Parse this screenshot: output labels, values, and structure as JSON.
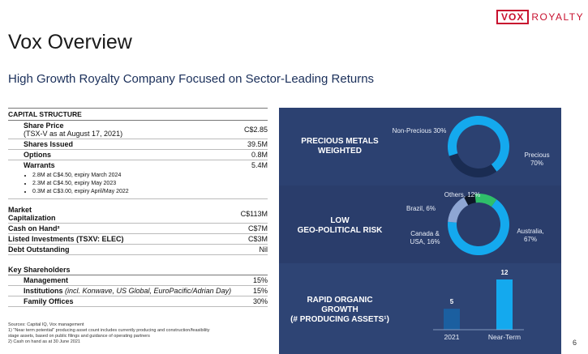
{
  "logo": {
    "box": "VOX",
    "text": "ROYALTY"
  },
  "title": "Vox Overview",
  "subtitle": "High Growth Royalty Company Focused on Sector-Leading Returns",
  "capital": {
    "header": "CAPITAL STRUCTURE",
    "share_price_label": "Share Price",
    "share_price_note": "(TSX-V as at August 17, 2021)",
    "share_price": "C$2.85",
    "shares_issued_label": "Shares Issued",
    "shares_issued": "39.5M",
    "options_label": "Options",
    "options": "0.8M",
    "warrants_label": "Warrants",
    "warrants": "5.4M",
    "warrant_bullets": [
      "2.8M at C$4.50, expiry March 2024",
      "2.3M at C$4.50, expiry May 2023",
      "0.3M at C$3.00, expiry April/May 2022"
    ],
    "market_cap_label_1": "Market",
    "market_cap_label_2": "Capitalization",
    "market_cap": "C$113M",
    "cash_label": "Cash on Hand²",
    "cash": "C$7M",
    "listed_label": "Listed Investments (TSXV: ELEC)",
    "listed": "C$3M",
    "debt_label": "Debt Outstanding",
    "debt": "Nil"
  },
  "shareholders": {
    "header": "Key Shareholders",
    "rows": [
      {
        "label": "Management",
        "note": "",
        "value": "15%"
      },
      {
        "label": "Institutions ",
        "note": "(incl. Konwave, US Global, EuroPacific/Adrian Day)",
        "value": "15%"
      },
      {
        "label": "Family Offices",
        "note": "",
        "value": "30%"
      }
    ]
  },
  "notes": [
    "Sources: Capital IQ, Vox management",
    "1) \"Near term potential\" producing asset count includes currently producing and construction/feasibility",
    "stage assets, based on public filings and guidance of operating partners",
    "2) Cash on hand as at 30 June 2021"
  ],
  "panels": {
    "p1_title_1": "PRECIOUS METALS",
    "p1_title_2": "WEIGHTED",
    "p2_title_1": "LOW",
    "p2_title_2": "GEO-POLITICAL RISK",
    "p3_title_1": "RAPID ORGANIC",
    "p3_title_2": "GROWTH",
    "p3_title_3": "(# PRODUCING ASSETS¹)"
  },
  "chart_data": [
    {
      "type": "pie",
      "labels": [
        "Precious",
        "Non-Precious"
      ],
      "values": [
        70,
        30
      ],
      "label_text": [
        "Precious\n70%",
        "Non-Precious\n30%"
      ],
      "colors": [
        "#14a9ee",
        "#1a2c52"
      ]
    },
    {
      "type": "pie",
      "labels": [
        "Australia",
        "Canada &\nUSA",
        "Brazil",
        "Others"
      ],
      "values": [
        67,
        16,
        6,
        12
      ],
      "label_text": [
        "Australia,\n67%",
        "Canada &\nUSA, 16%",
        "Brazil, 6%",
        "Others, 12%"
      ],
      "colors": [
        "#14a9ee",
        "#8ea6d3",
        "#0d1626",
        "#2fbf6a"
      ]
    },
    {
      "type": "bar",
      "categories": [
        "2021",
        "Near-Term"
      ],
      "values": [
        5,
        12
      ],
      "colors": [
        "#1b5fa0",
        "#14a9ee"
      ]
    }
  ],
  "page_number": "6"
}
